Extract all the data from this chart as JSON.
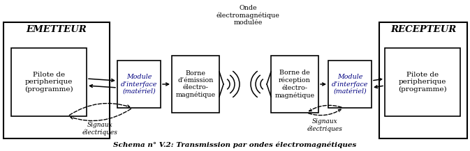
{
  "title": "Schema n° V.2: Transmission par ondes électromagnétiques",
  "emetteur_label": "EMETTEUR",
  "recepteur_label": "RECEPTEUR",
  "box1_text": "Pilote de\nperipherique\n(programme)",
  "box2_text": "Module\nd’interface\n(matériel)",
  "box3_text": "Borne\nd’émission\nélectro-\nmagnétique",
  "wave_label": "Onde\nélectromagnétique\nmodulée",
  "box4_text": "Borne de\nréception\nélectro-\nmagnétique",
  "box5_text": "Module\nd’interface\n(matériel)",
  "box6_text": "Pilote de\nperipherique\n(programme)",
  "signaux_elec_left": "Signaux\nélectriques",
  "signaux_elec_right": "Signaux\nélectriques",
  "bg_color": "#ffffff",
  "box_color": "#000000",
  "text_color": "#000000",
  "interface_text_color": "#000080"
}
